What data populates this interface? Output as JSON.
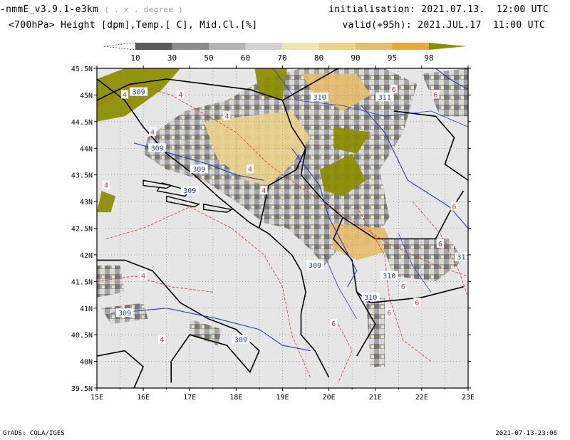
{
  "header": {
    "model": "-nmmE_v3.9.1-e3km",
    "model_unit": "( . x . degree )",
    "variables": "<700hPa> Height [dpm],Temp.[ C], Mid.Cl.[%]",
    "init_label": "initialisation:",
    "init_value": "2021.07.13.  12:00 UTC",
    "valid_label": "valid(+95h):",
    "valid_value": "2021.JUL.17  11:00 UTC"
  },
  "colorbar": {
    "labels": [
      "10",
      "30",
      "50",
      "60",
      "70",
      "80",
      "90",
      "95",
      "98"
    ],
    "colors": [
      "#ffffff",
      "#5a5a5a",
      "#8c8c8c",
      "#b4b4b4",
      "#d2d2d2",
      "#f0e6b4",
      "#ecd28c",
      "#e6be6e",
      "#e6aa37",
      "#8c8c00"
    ]
  },
  "map": {
    "lat_labels": [
      "45.5N",
      "45N",
      "44.5N",
      "44N",
      "43.5N",
      "43N",
      "42.5N",
      "42N",
      "41.5N",
      "41N",
      "40.5N",
      "40N",
      "39.5N"
    ],
    "lon_labels": [
      "15E",
      "16E",
      "17E",
      "18E",
      "19E",
      "20E",
      "21E",
      "22E",
      "23E"
    ],
    "lat_range": [
      39.5,
      45.5
    ],
    "lon_range": [
      15,
      23
    ],
    "contour_labels_height": [
      "309",
      "310",
      "311",
      "309",
      "309",
      "309",
      "310",
      "310",
      "309",
      "309",
      "309",
      "311"
    ],
    "contour_labels_temp": [
      "4",
      "4",
      "4",
      "4",
      "4",
      "4",
      "4",
      "4",
      "4",
      "6",
      "6",
      "6",
      "6",
      "6",
      "6",
      "6",
      "6"
    ],
    "colors": {
      "background": "#e6e6e6",
      "height_contour": "#1f3fd0",
      "temp_contour": "#e03030",
      "border": "#000000"
    }
  },
  "footer": {
    "left": "GrADS: COLA/IGES",
    "right": "2021-07-13-23:06"
  }
}
